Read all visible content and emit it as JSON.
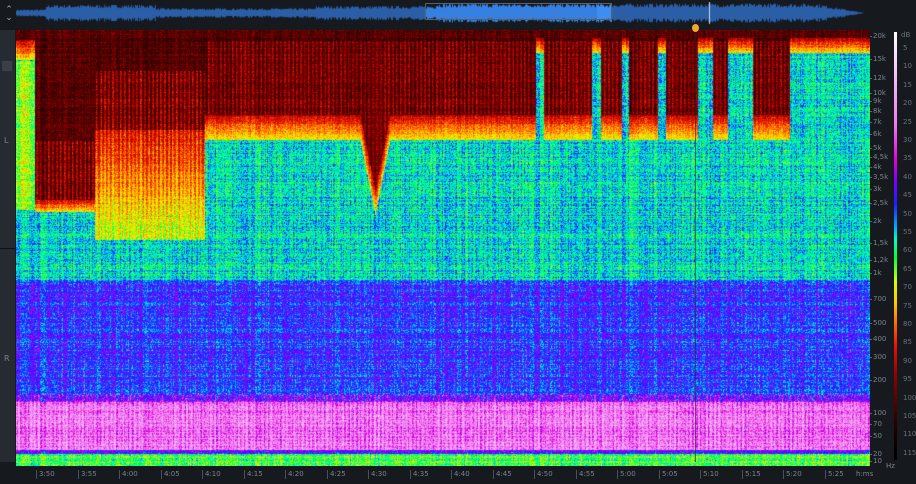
{
  "overview": {
    "toggle_icon": "collapse-expand-icon",
    "waveform_color": "#2a5fa8",
    "selection_color": "#3d8ef0"
  },
  "channels": {
    "left": "L",
    "right": "R"
  },
  "playhead": {
    "color": "#f0a830"
  },
  "time_axis": {
    "labels": [
      "3:50",
      "3:55",
      "4:00",
      "4:05",
      "4:10",
      "4:15",
      "4:20",
      "4:25",
      "4:30",
      "4:35",
      "4:40",
      "4:45",
      "4:50",
      "4:55",
      "5:00",
      "5:05",
      "5:10",
      "5:15",
      "5:20",
      "5:25"
    ],
    "unit": "h:ms"
  },
  "frequency_axis": {
    "labels": [
      "20k",
      "15k",
      "12k",
      "10k",
      "9k",
      "8k",
      "7k",
      "6k",
      "5k",
      "4,5k",
      "4k",
      "3,5k",
      "3k",
      "2,5k",
      "2k",
      "1,5k",
      "1,2k",
      "1k",
      "700",
      "500",
      "400",
      "300",
      "200",
      "100",
      "70",
      "50",
      "20",
      "10"
    ],
    "unit": "Hz"
  },
  "db_scale": {
    "unit": "dB",
    "labels": [
      "5",
      "10",
      "15",
      "20",
      "25",
      "30",
      "35",
      "40",
      "45",
      "50",
      "55",
      "60",
      "65",
      "70",
      "75",
      "80",
      "85",
      "90",
      "95",
      "100",
      "105",
      "110",
      "115"
    ],
    "colormap": [
      "#ffffff",
      "#f078f0",
      "#dc00dc",
      "#7800ff",
      "#1e1eff",
      "#00a0ff",
      "#00ffc8",
      "#00ff3c",
      "#dcff00",
      "#ffc800",
      "#ff6400",
      "#e61400",
      "#960000",
      "#320000",
      "#000000"
    ]
  }
}
